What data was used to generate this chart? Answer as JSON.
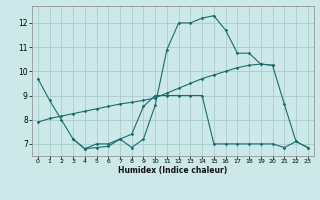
{
  "xlabel": "Humidex (Indice chaleur)",
  "xlim": [
    -0.5,
    23.5
  ],
  "ylim": [
    6.5,
    12.7
  ],
  "xticks": [
    0,
    1,
    2,
    3,
    4,
    5,
    6,
    7,
    8,
    9,
    10,
    11,
    12,
    13,
    14,
    15,
    16,
    17,
    18,
    19,
    20,
    21,
    22,
    23
  ],
  "yticks": [
    7,
    8,
    9,
    10,
    11,
    12
  ],
  "background_color": "#cce8e8",
  "grid_color": "#aacccc",
  "line_color": "#1a6b6b",
  "curve1_x": [
    0,
    1,
    2,
    3,
    4,
    5,
    6,
    7,
    8,
    9,
    10,
    11,
    12,
    13,
    14,
    15,
    16,
    17,
    18,
    19,
    20,
    21,
    22,
    23
  ],
  "curve1_y": [
    9.7,
    8.8,
    8.0,
    7.2,
    6.8,
    6.85,
    6.9,
    7.2,
    6.85,
    7.2,
    8.6,
    10.9,
    12.0,
    12.0,
    12.2,
    12.3,
    11.7,
    10.75,
    10.75,
    10.3,
    10.25,
    8.65,
    7.1,
    6.85
  ],
  "curve2_x": [
    3,
    4,
    5,
    6,
    7,
    8,
    9,
    10,
    11,
    12,
    13,
    14,
    15,
    16,
    17,
    18,
    19,
    20,
    21,
    22,
    23
  ],
  "curve2_y": [
    7.2,
    6.8,
    7.0,
    7.0,
    7.2,
    7.4,
    8.55,
    9.0,
    9.0,
    9.0,
    9.0,
    9.0,
    7.0,
    7.0,
    7.0,
    7.0,
    7.0,
    7.0,
    6.85,
    7.1,
    6.85
  ],
  "curve3_x": [
    0,
    1,
    2,
    3,
    4,
    5,
    6,
    7,
    8,
    9,
    10,
    11,
    12,
    13,
    14,
    15,
    16,
    17,
    18,
    19,
    20
  ],
  "curve3_y": [
    7.9,
    8.05,
    8.15,
    8.25,
    8.35,
    8.45,
    8.55,
    8.65,
    8.72,
    8.8,
    8.9,
    9.1,
    9.3,
    9.5,
    9.7,
    9.85,
    10.0,
    10.15,
    10.25,
    10.3,
    10.25
  ]
}
